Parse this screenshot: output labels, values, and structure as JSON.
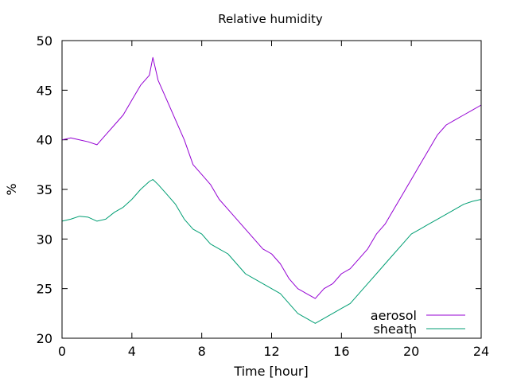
{
  "chart_data": {
    "type": "line",
    "title": "Relative humidity",
    "xlabel": "Time [hour]",
    "ylabel": "%",
    "xlim": [
      0,
      24
    ],
    "ylim": [
      20,
      50
    ],
    "xticks": [
      0,
      4,
      8,
      12,
      16,
      20,
      24
    ],
    "yticks": [
      20,
      25,
      30,
      35,
      40,
      45,
      50
    ],
    "grid": false,
    "legend_position": "bottom-right",
    "series": [
      {
        "name": "aerosol",
        "color": "#9400d3",
        "x": [
          0,
          0.5,
          1,
          1.5,
          2,
          2.5,
          3,
          3.5,
          4,
          4.5,
          5,
          5.2,
          5.5,
          6,
          6.5,
          7,
          7.5,
          8,
          8.5,
          9,
          9.5,
          10,
          10.5,
          11,
          11.5,
          12,
          12.5,
          13,
          13.5,
          14,
          14.5,
          15,
          15.5,
          16,
          16.5,
          17,
          17.5,
          18,
          18.5,
          19,
          19.5,
          20,
          20.5,
          21,
          21.5,
          22,
          22.5,
          23,
          23.5,
          24
        ],
        "values": [
          40.0,
          40.2,
          40.0,
          39.8,
          39.5,
          40.5,
          41.5,
          42.5,
          44.0,
          45.5,
          46.5,
          48.3,
          46.0,
          44.0,
          42.0,
          40.0,
          37.5,
          36.5,
          35.5,
          34.0,
          33.0,
          32.0,
          31.0,
          30.0,
          29.0,
          28.5,
          27.5,
          26.0,
          25.0,
          24.5,
          24.0,
          25.0,
          25.5,
          26.5,
          27.0,
          28.0,
          29.0,
          30.5,
          31.5,
          33.0,
          34.5,
          36.0,
          37.5,
          39.0,
          40.5,
          41.5,
          42.0,
          42.5,
          43.0,
          43.5
        ]
      },
      {
        "name": "sheath",
        "color": "#009e73",
        "x": [
          0,
          0.5,
          1,
          1.5,
          2,
          2.5,
          3,
          3.5,
          4,
          4.5,
          5,
          5.2,
          5.5,
          6,
          6.5,
          7,
          7.5,
          8,
          8.5,
          9,
          9.5,
          10,
          10.5,
          11,
          11.5,
          12,
          12.5,
          13,
          13.5,
          14,
          14.5,
          15,
          15.5,
          16,
          16.5,
          17,
          17.5,
          18,
          18.5,
          19,
          19.5,
          20,
          20.5,
          21,
          21.5,
          22,
          22.5,
          23,
          23.5,
          24
        ],
        "values": [
          31.8,
          32.0,
          32.3,
          32.2,
          31.8,
          32.0,
          32.7,
          33.2,
          34.0,
          35.0,
          35.8,
          36.0,
          35.5,
          34.5,
          33.5,
          32.0,
          31.0,
          30.5,
          29.5,
          29.0,
          28.5,
          27.5,
          26.5,
          26.0,
          25.5,
          25.0,
          24.5,
          23.5,
          22.5,
          22.0,
          21.5,
          22.0,
          22.5,
          23.0,
          23.5,
          24.5,
          25.5,
          26.5,
          27.5,
          28.5,
          29.5,
          30.5,
          31.0,
          31.5,
          32.0,
          32.5,
          33.0,
          33.5,
          33.8,
          34.0
        ]
      }
    ]
  }
}
